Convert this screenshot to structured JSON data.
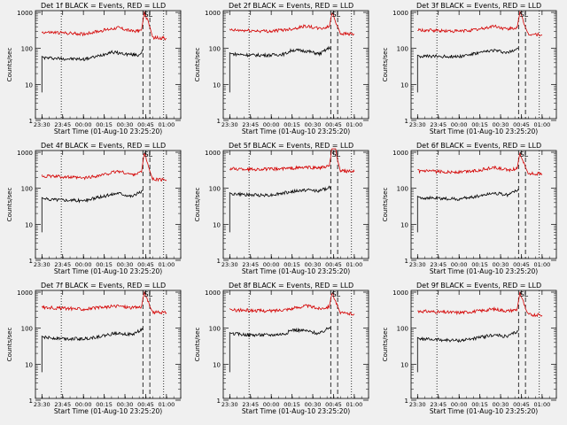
{
  "ylabel": "Counts/sec",
  "xlabel": "Start Time (01-Aug-10 23:25:20)",
  "xticks": [
    "23:30",
    "23:45",
    "00:00",
    "00:15",
    "00:30",
    "00:45",
    "01:00"
  ],
  "yticks": [
    "1",
    "10",
    "100",
    "1000"
  ],
  "colors": {
    "black_series": "#000000",
    "red_series": "#d40000",
    "axis": "#000000",
    "background": "#f0f0f0"
  },
  "marker_label": "SL",
  "chart_data": [
    {
      "type": "line",
      "title": "Det 1f BLACK = Events, RED = LLD",
      "ylim": [
        1,
        1000
      ],
      "y_scale": "log",
      "vlines": {
        "dotted": [
          "23:44",
          "00:58"
        ],
        "dashed": [
          "00:43",
          "00:48"
        ]
      },
      "series": [
        {
          "name": "BLACK = Events",
          "points": [
            [
              "23:30",
              60
            ],
            [
              "23:32",
              55
            ],
            [
              "23:45",
              52
            ],
            [
              "00:00",
              50
            ],
            [
              "00:10",
              60
            ],
            [
              "00:20",
              80
            ],
            [
              "00:30",
              70
            ],
            [
              "00:40",
              65
            ],
            [
              "00:43",
              90
            ]
          ]
        },
        {
          "name": "RED = LLD",
          "points": [
            [
              "23:30",
              280
            ],
            [
              "23:45",
              270
            ],
            [
              "00:00",
              250
            ],
            [
              "00:15",
              320
            ],
            [
              "00:25",
              380
            ],
            [
              "00:35",
              300
            ],
            [
              "00:42",
              320
            ],
            [
              "00:44",
              1000
            ],
            [
              "00:48",
              400
            ],
            [
              "00:50",
              200
            ],
            [
              "01:00",
              190
            ]
          ]
        }
      ]
    },
    {
      "type": "line",
      "title": "Det 2f BLACK = Events, RED = LLD",
      "ylim": [
        1,
        1000
      ],
      "y_scale": "log",
      "vlines": {
        "dotted": [
          "23:44",
          "00:58"
        ],
        "dashed": [
          "00:43",
          "00:48"
        ]
      },
      "series": [
        {
          "name": "BLACK = Events",
          "points": [
            [
              "23:30",
              75
            ],
            [
              "23:32",
              70
            ],
            [
              "23:45",
              65
            ],
            [
              "00:00",
              65
            ],
            [
              "00:10",
              70
            ],
            [
              "00:15",
              90
            ],
            [
              "00:25",
              85
            ],
            [
              "00:35",
              70
            ],
            [
              "00:43",
              110
            ]
          ]
        },
        {
          "name": "RED = LLD",
          "points": [
            [
              "23:30",
              320
            ],
            [
              "23:45",
              310
            ],
            [
              "00:00",
              300
            ],
            [
              "00:15",
              350
            ],
            [
              "00:25",
              420
            ],
            [
              "00:35",
              350
            ],
            [
              "00:42",
              400
            ],
            [
              "00:44",
              1000
            ],
            [
              "00:48",
              400
            ],
            [
              "00:50",
              260
            ],
            [
              "01:00",
              250
            ]
          ]
        }
      ]
    },
    {
      "type": "line",
      "title": "Det 3f BLACK = Events, RED = LLD",
      "ylim": [
        1,
        1000
      ],
      "y_scale": "log",
      "vlines": {
        "dotted": [
          "23:44",
          "00:58"
        ],
        "dashed": [
          "00:43",
          "00:48"
        ]
      },
      "series": [
        {
          "name": "BLACK = Events",
          "points": [
            [
              "23:30",
              65
            ],
            [
              "23:32",
              60
            ],
            [
              "23:45",
              60
            ],
            [
              "00:00",
              60
            ],
            [
              "00:15",
              75
            ],
            [
              "00:25",
              90
            ],
            [
              "00:35",
              75
            ],
            [
              "00:43",
              105
            ]
          ]
        },
        {
          "name": "RED = LLD",
          "points": [
            [
              "23:30",
              320
            ],
            [
              "23:45",
              310
            ],
            [
              "00:00",
              300
            ],
            [
              "00:15",
              340
            ],
            [
              "00:25",
              420
            ],
            [
              "00:35",
              340
            ],
            [
              "00:42",
              380
            ],
            [
              "00:44",
              1000
            ],
            [
              "00:48",
              380
            ],
            [
              "00:50",
              250
            ],
            [
              "01:00",
              240
            ]
          ]
        }
      ]
    },
    {
      "type": "line",
      "title": "Det 4f BLACK = Events, RED = LLD",
      "ylim": [
        1,
        1000
      ],
      "y_scale": "log",
      "vlines": {
        "dotted": [
          "23:44",
          "00:58"
        ],
        "dashed": [
          "00:43",
          "00:48"
        ]
      },
      "series": [
        {
          "name": "BLACK = Events",
          "points": [
            [
              "23:30",
              55
            ],
            [
              "23:32",
              50
            ],
            [
              "23:45",
              48
            ],
            [
              "00:00",
              45
            ],
            [
              "00:15",
              60
            ],
            [
              "00:25",
              75
            ],
            [
              "00:35",
              60
            ],
            [
              "00:43",
              85
            ]
          ]
        },
        {
          "name": "RED = LLD",
          "points": [
            [
              "23:30",
              220
            ],
            [
              "23:45",
              210
            ],
            [
              "00:00",
              190
            ],
            [
              "00:15",
              240
            ],
            [
              "00:25",
              300
            ],
            [
              "00:35",
              240
            ],
            [
              "00:42",
              280
            ],
            [
              "00:44",
              1000
            ],
            [
              "00:48",
              300
            ],
            [
              "00:50",
              180
            ],
            [
              "01:00",
              170
            ]
          ]
        }
      ]
    },
    {
      "type": "line",
      "title": "Det 5f BLACK = Events, RED = LLD",
      "ylim": [
        1,
        1000
      ],
      "y_scale": "log",
      "vlines": {
        "dotted": [
          "23:44",
          "00:58"
        ],
        "dashed": [
          "00:43",
          "00:48"
        ]
      },
      "series": [
        {
          "name": "BLACK = Events",
          "points": [
            [
              "23:30",
              75
            ],
            [
              "23:32",
              70
            ],
            [
              "23:45",
              65
            ],
            [
              "00:00",
              65
            ],
            [
              "00:15",
              80
            ],
            [
              "00:25",
              90
            ],
            [
              "00:35",
              85
            ],
            [
              "00:43",
              110
            ]
          ]
        },
        {
          "name": "RED = LLD",
          "points": [
            [
              "23:30",
              350
            ],
            [
              "23:45",
              340
            ],
            [
              "00:00",
              340
            ],
            [
              "00:15",
              360
            ],
            [
              "00:25",
              380
            ],
            [
              "00:35",
              370
            ],
            [
              "00:42",
              400
            ],
            [
              "00:45",
              3000
            ],
            [
              "00:48",
              600
            ],
            [
              "00:50",
              300
            ],
            [
              "01:00",
              290
            ]
          ]
        }
      ]
    },
    {
      "type": "line",
      "title": "Det 6f BLACK = Events, RED = LLD",
      "ylim": [
        1,
        1000
      ],
      "y_scale": "log",
      "vlines": {
        "dotted": [
          "23:44",
          "00:58"
        ],
        "dashed": [
          "00:43",
          "00:48"
        ]
      },
      "series": [
        {
          "name": "BLACK = Events",
          "points": [
            [
              "23:30",
              60
            ],
            [
              "23:32",
              55
            ],
            [
              "23:45",
              52
            ],
            [
              "00:00",
              50
            ],
            [
              "00:15",
              62
            ],
            [
              "00:25",
              75
            ],
            [
              "00:35",
              65
            ],
            [
              "00:43",
              95
            ]
          ]
        },
        {
          "name": "RED = LLD",
          "points": [
            [
              "23:30",
              300
            ],
            [
              "23:45",
              290
            ],
            [
              "00:00",
              280
            ],
            [
              "00:15",
              320
            ],
            [
              "00:25",
              380
            ],
            [
              "00:35",
              320
            ],
            [
              "00:42",
              350
            ],
            [
              "00:44",
              1000
            ],
            [
              "00:48",
              380
            ],
            [
              "00:50",
              260
            ],
            [
              "01:00",
              250
            ]
          ]
        }
      ]
    },
    {
      "type": "line",
      "title": "Det 7f BLACK = Events, RED = LLD",
      "ylim": [
        1,
        1000
      ],
      "y_scale": "log",
      "vlines": {
        "dotted": [
          "23:44",
          "00:58"
        ],
        "dashed": [
          "00:43",
          "00:48"
        ]
      },
      "series": [
        {
          "name": "BLACK = Events",
          "points": [
            [
              "23:30",
              60
            ],
            [
              "23:32",
              55
            ],
            [
              "23:45",
              52
            ],
            [
              "00:00",
              50
            ],
            [
              "00:15",
              62
            ],
            [
              "00:25",
              75
            ],
            [
              "00:35",
              65
            ],
            [
              "00:43",
              95
            ]
          ]
        },
        {
          "name": "RED = LLD",
          "points": [
            [
              "23:30",
              380
            ],
            [
              "23:45",
              360
            ],
            [
              "00:00",
              340
            ],
            [
              "00:15",
              380
            ],
            [
              "00:25",
              420
            ],
            [
              "00:35",
              370
            ],
            [
              "00:42",
              400
            ],
            [
              "00:44",
              1000
            ],
            [
              "00:48",
              400
            ],
            [
              "00:50",
              280
            ],
            [
              "01:00",
              270
            ]
          ]
        }
      ]
    },
    {
      "type": "line",
      "title": "Det 8f BLACK = Events, RED = LLD",
      "ylim": [
        1,
        1000
      ],
      "y_scale": "log",
      "vlines": {
        "dotted": [
          "23:44",
          "00:58"
        ],
        "dashed": [
          "00:43",
          "00:48"
        ]
      },
      "series": [
        {
          "name": "BLACK = Events",
          "points": [
            [
              "23:30",
              75
            ],
            [
              "23:32",
              70
            ],
            [
              "23:45",
              65
            ],
            [
              "00:00",
              65
            ],
            [
              "00:10",
              70
            ],
            [
              "00:15",
              90
            ],
            [
              "00:25",
              85
            ],
            [
              "00:35",
              70
            ],
            [
              "00:43",
              110
            ]
          ]
        },
        {
          "name": "RED = LLD",
          "points": [
            [
              "23:30",
              320
            ],
            [
              "23:45",
              310
            ],
            [
              "00:00",
              300
            ],
            [
              "00:15",
              350
            ],
            [
              "00:25",
              420
            ],
            [
              "00:35",
              350
            ],
            [
              "00:42",
              400
            ],
            [
              "00:44",
              1000
            ],
            [
              "00:48",
              400
            ],
            [
              "00:50",
              260
            ],
            [
              "01:00",
              250
            ]
          ]
        }
      ]
    },
    {
      "type": "line",
      "title": "Det 9f BLACK = Events, RED = LLD",
      "ylim": [
        1,
        1000
      ],
      "y_scale": "log",
      "vlines": {
        "dotted": [
          "23:44",
          "00:58"
        ],
        "dashed": [
          "00:43",
          "00:48"
        ]
      },
      "series": [
        {
          "name": "BLACK = Events",
          "points": [
            [
              "23:30",
              55
            ],
            [
              "23:32",
              50
            ],
            [
              "23:45",
              48
            ],
            [
              "00:00",
              45
            ],
            [
              "00:15",
              55
            ],
            [
              "00:25",
              65
            ],
            [
              "00:35",
              58
            ],
            [
              "00:43",
              85
            ]
          ]
        },
        {
          "name": "RED = LLD",
          "points": [
            [
              "23:30",
              300
            ],
            [
              "23:45",
              280
            ],
            [
              "00:00",
              270
            ],
            [
              "00:15",
              300
            ],
            [
              "00:25",
              340
            ],
            [
              "00:35",
              300
            ],
            [
              "00:42",
              330
            ],
            [
              "00:44",
              1000
            ],
            [
              "00:48",
              350
            ],
            [
              "00:50",
              240
            ],
            [
              "01:00",
              230
            ]
          ]
        }
      ]
    }
  ]
}
